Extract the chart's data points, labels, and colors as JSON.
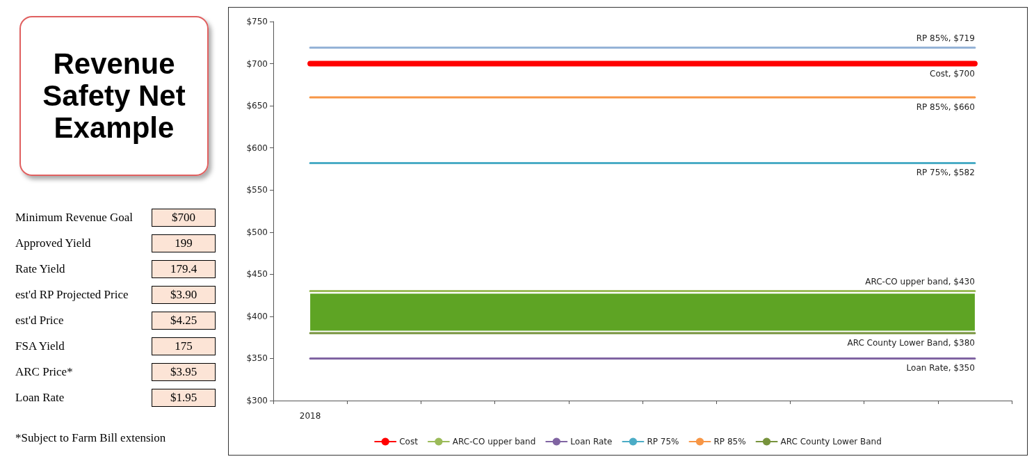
{
  "chart_data": [
    {
      "type": "other",
      "title": "Revenue Safety Net Example",
      "annotations": [
        "Minimum Revenue Goal",
        "$700",
        "Approved Yield",
        "199",
        "Rate Yield",
        "179.4",
        "est'd RP Projected Price",
        "$3.90",
        "est'd Price",
        "$4.25",
        "FSA Yield",
        "175",
        "ARC Price*",
        "$3.95",
        "Loan Rate",
        "$1.95",
        "*Subject to Farm Bill extension"
      ]
    },
    {
      "type": "line",
      "categories": [
        "2018",
        null,
        null,
        null,
        null,
        null,
        null,
        null,
        null,
        null
      ],
      "series": [
        {
          "name": "Cost",
          "color": "#ff0000",
          "values": [
            700,
            700,
            700,
            700,
            700,
            700,
            700,
            700,
            700,
            700
          ],
          "value_labels": [
            null,
            null,
            null,
            null,
            null,
            null,
            null,
            null,
            null,
            "Cost, $700"
          ]
        },
        {
          "name": "ARC-CO upper band",
          "color": "#9bbb59",
          "values": [
            430,
            430,
            430,
            430,
            430,
            430,
            430,
            430,
            430,
            430
          ],
          "value_labels": [
            null,
            null,
            null,
            null,
            null,
            null,
            null,
            null,
            null,
            "ARC-CO upper band, $430"
          ]
        },
        {
          "name": "Loan Rate",
          "color": "#8064a2",
          "values": [
            350,
            350,
            350,
            350,
            350,
            350,
            350,
            350,
            350,
            350
          ],
          "value_labels": [
            null,
            null,
            null,
            null,
            null,
            null,
            null,
            null,
            null,
            "Loan Rate, $350"
          ]
        },
        {
          "name": "RP 75%",
          "color": "#4bacc6",
          "values": [
            582,
            582,
            582,
            582,
            582,
            582,
            582,
            582,
            582,
            582
          ],
          "value_labels": [
            null,
            null,
            null,
            null,
            null,
            null,
            null,
            null,
            null,
            "RP 75%, $582"
          ]
        },
        {
          "name": "RP 85%",
          "color": "#f79646",
          "values": [
            660,
            660,
            660,
            660,
            660,
            660,
            660,
            660,
            660,
            660
          ],
          "value_labels": [
            null,
            null,
            null,
            null,
            null,
            null,
            null,
            null,
            null,
            "RP 85%, $660"
          ]
        },
        {
          "color": "#95b3d7",
          "values": [
            719,
            719,
            719,
            719,
            719,
            719,
            719,
            719,
            719,
            719
          ],
          "value_labels": [
            null,
            null,
            null,
            null,
            null,
            null,
            null,
            null,
            null,
            "RP 85%, $719"
          ]
        },
        {
          "name": "ARC County Lower Band",
          "color": "#77933c",
          "values": [
            380,
            380,
            380,
            380,
            380,
            380,
            380,
            380,
            380,
            380
          ],
          "value_labels": [
            null,
            null,
            null,
            null,
            null,
            null,
            null,
            null,
            null,
            "ARC County Lower Band, $380"
          ]
        }
      ],
      "bands": [
        {
          "axis": "y",
          "from": 383,
          "to": 427,
          "color": "#5ea424"
        }
      ],
      "ylim": [
        300,
        750
      ],
      "yticks": [
        {
          "value": 300,
          "label": "$300"
        },
        {
          "value": 350,
          "label": "$350"
        },
        {
          "value": 400,
          "label": "$400"
        },
        {
          "value": 450,
          "label": "$450"
        },
        {
          "value": 500,
          "label": "$500"
        },
        {
          "value": 550,
          "label": "$550"
        },
        {
          "value": 600,
          "label": "$600"
        },
        {
          "value": 650,
          "label": "$650"
        },
        {
          "value": 700,
          "label": "$700"
        },
        {
          "value": 750,
          "label": "$750"
        }
      ],
      "legend": "bottom",
      "marker": "none"
    }
  ]
}
